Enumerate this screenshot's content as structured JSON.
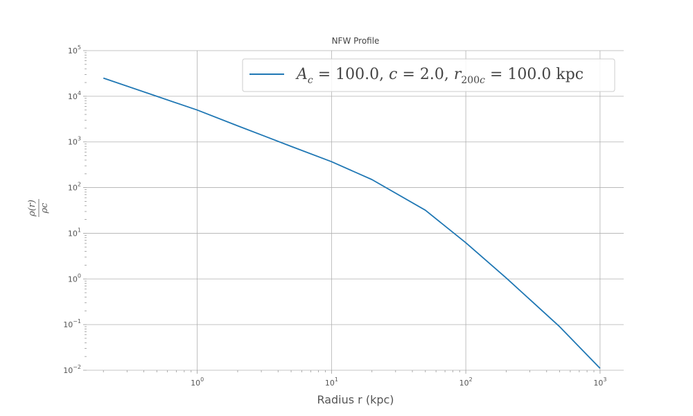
{
  "chart_data": {
    "type": "line",
    "title": "NFW Profile",
    "xlabel": "Radius r (kpc)",
    "ylabel_num": "ρ(r)",
    "ylabel_den": "ρc",
    "xscale": "log",
    "yscale": "log",
    "xlim": [
      0.15,
      1500
    ],
    "ylim": [
      0.01,
      100000
    ],
    "grid": true,
    "legend": {
      "placement": "top-right",
      "label": "A_c = 100.0, c = 2.0, r_200c = 100.0 kpc"
    },
    "x_ticks": [
      {
        "base": "10",
        "exp": "0"
      },
      {
        "base": "10",
        "exp": "1"
      },
      {
        "base": "10",
        "exp": "2"
      },
      {
        "base": "10",
        "exp": "3"
      }
    ],
    "y_ticks": [
      {
        "base": "10",
        "exp": "−2"
      },
      {
        "base": "10",
        "exp": "−1"
      },
      {
        "base": "10",
        "exp": "0"
      },
      {
        "base": "10",
        "exp": "1"
      },
      {
        "base": "10",
        "exp": "2"
      },
      {
        "base": "10",
        "exp": "3"
      },
      {
        "base": "10",
        "exp": "4"
      },
      {
        "base": "10",
        "exp": "5"
      }
    ],
    "series": [
      {
        "color": "#1f77b4",
        "x": [
          0.2,
          0.5,
          1,
          2,
          5,
          10,
          20,
          50,
          100,
          200,
          500,
          1000
        ],
        "y": [
          25000,
          10000,
          5000,
          2250,
          800,
          370,
          150,
          32,
          6.2,
          1.05,
          0.09,
          0.011
        ]
      }
    ]
  }
}
